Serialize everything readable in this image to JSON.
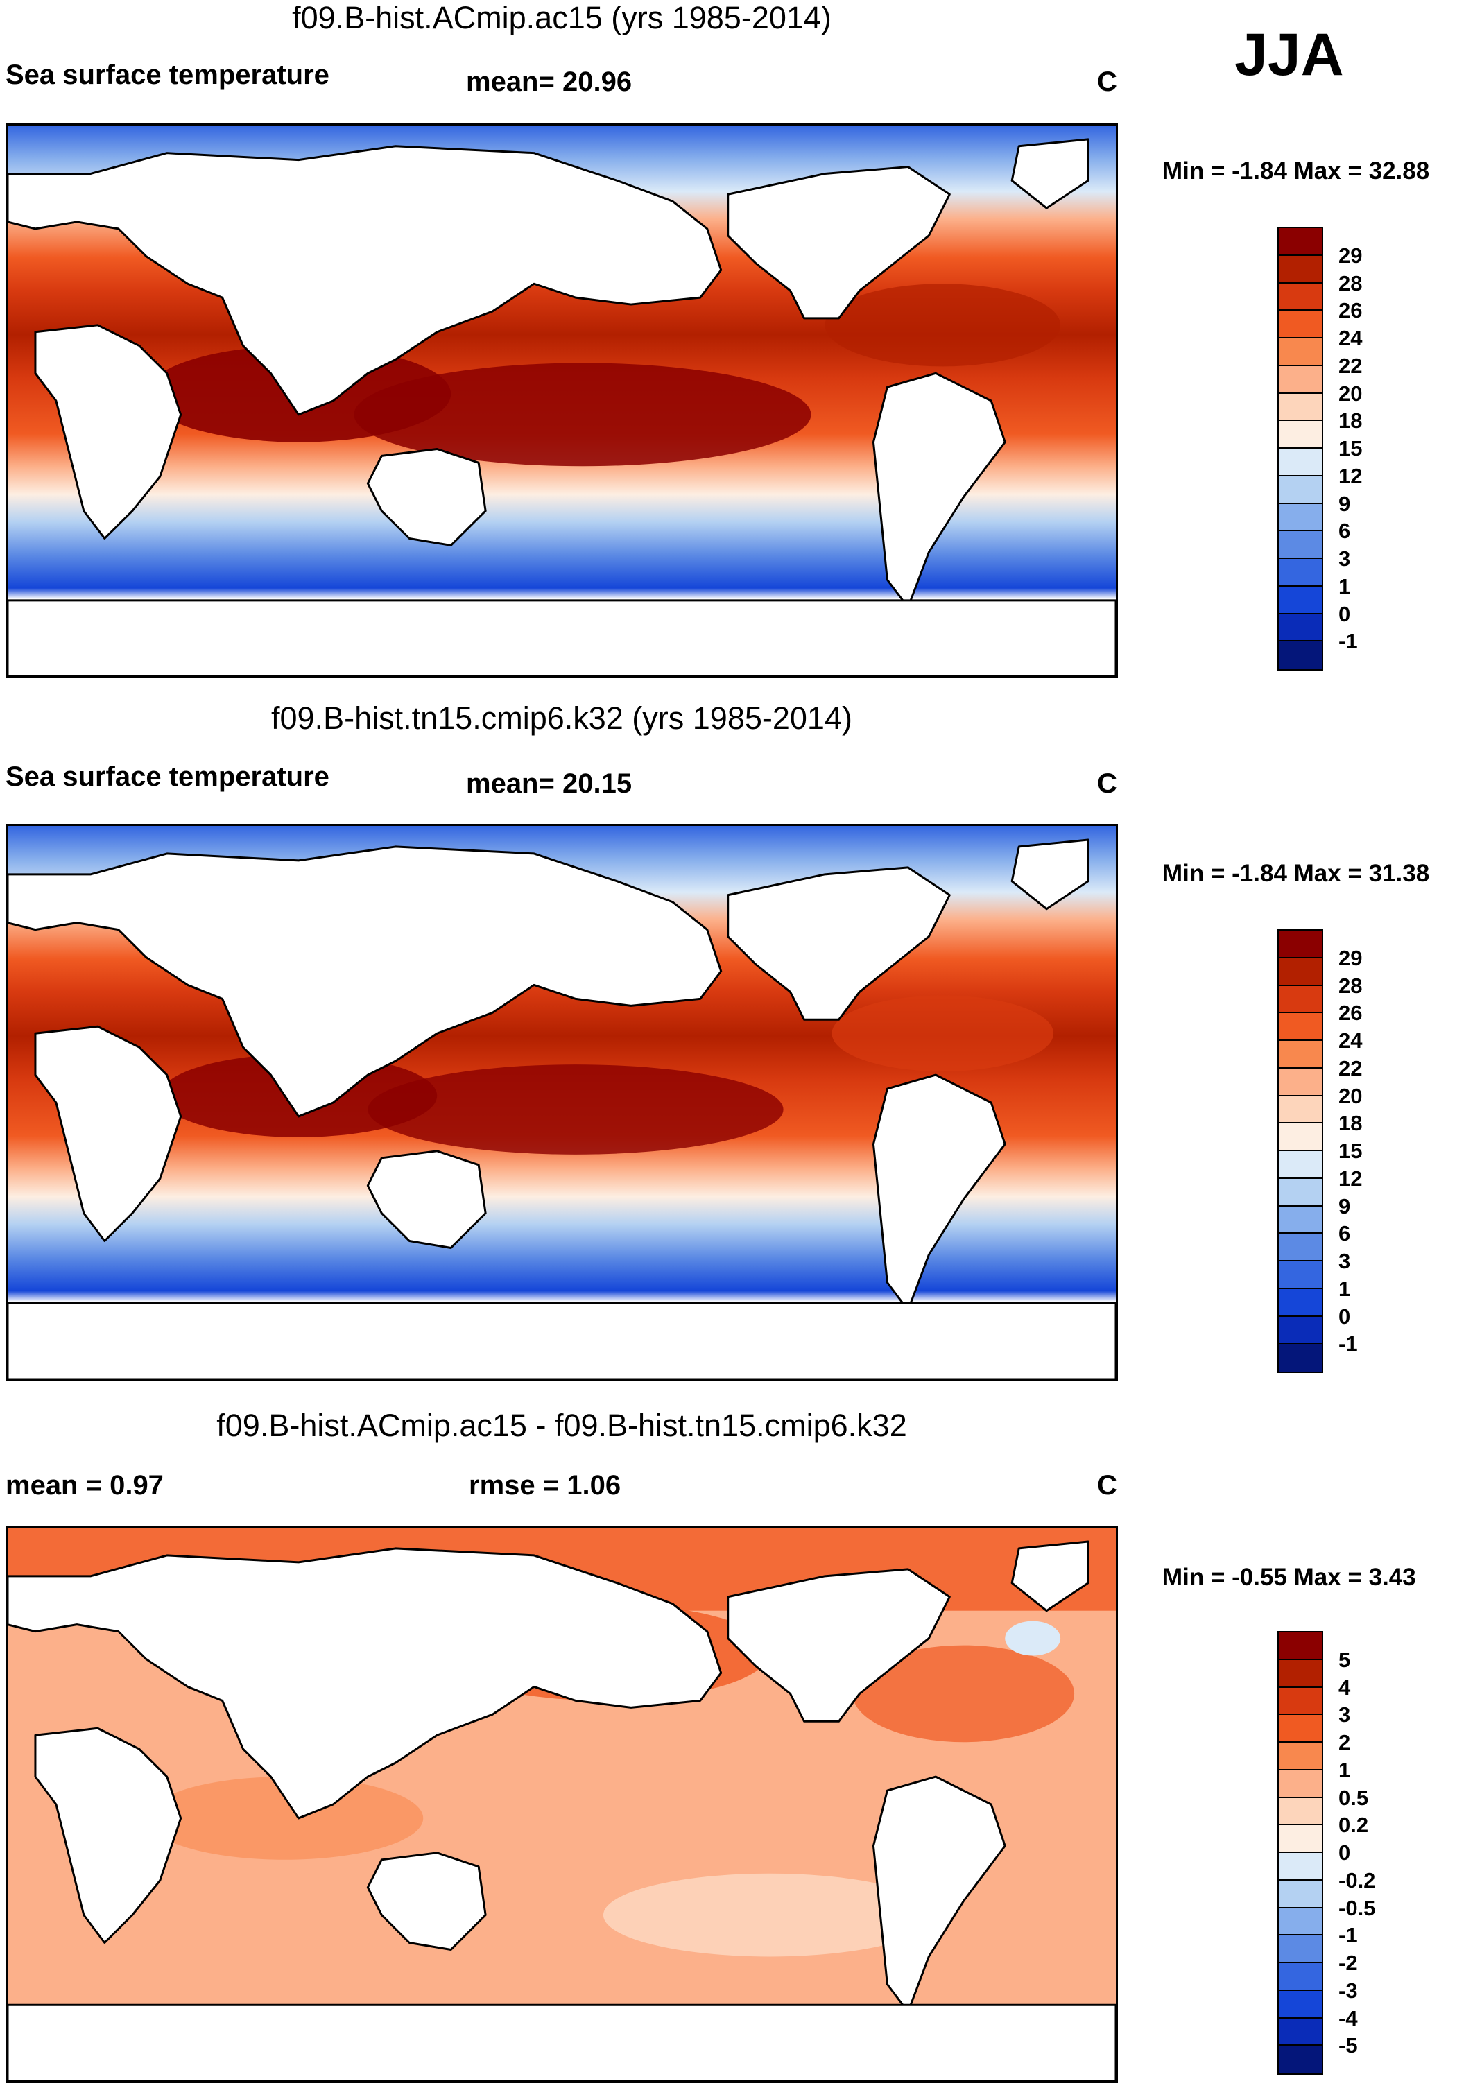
{
  "season": "JJA",
  "panels": [
    {
      "title": "f09.B-hist.ACmip.ac15 (yrs 1985-2014)",
      "left_label": "Sea surface temperature",
      "mid_label": "mean=  20.96",
      "units": "C",
      "minmax": "Min =  -1.84 Max =  32.88",
      "colorbar": {
        "colors": [
          "#8b0000",
          "#b22000",
          "#d83a10",
          "#f05a22",
          "#f8884e",
          "#fcb08a",
          "#fdd5bb",
          "#fdeee2",
          "#dbeaf8",
          "#b4d1f2",
          "#86aeec",
          "#5c8ae4",
          "#3466e0",
          "#1546d8",
          "#0a2cb8",
          "#04167a"
        ],
        "labels": [
          "29",
          "28",
          "26",
          "24",
          "22",
          "20",
          "18",
          "15",
          "12",
          "9",
          "6",
          "3",
          "1",
          "0",
          "-1"
        ]
      }
    },
    {
      "title": "f09.B-hist.tn15.cmip6.k32 (yrs 1985-2014)",
      "left_label": "Sea surface temperature",
      "mid_label": "mean=  20.15",
      "units": "C",
      "minmax": "Min =  -1.84 Max =  31.38",
      "colorbar": {
        "colors": [
          "#8b0000",
          "#b22000",
          "#d83a10",
          "#f05a22",
          "#f8884e",
          "#fcb08a",
          "#fdd5bb",
          "#fdeee2",
          "#dbeaf8",
          "#b4d1f2",
          "#86aeec",
          "#5c8ae4",
          "#3466e0",
          "#1546d8",
          "#0a2cb8",
          "#04167a"
        ],
        "labels": [
          "29",
          "28",
          "26",
          "24",
          "22",
          "20",
          "18",
          "15",
          "12",
          "9",
          "6",
          "3",
          "1",
          "0",
          "-1"
        ]
      }
    },
    {
      "title": "f09.B-hist.ACmip.ac15 - f09.B-hist.tn15.cmip6.k32",
      "left_label": "mean =   0.97",
      "mid_label": "rmse =   1.06",
      "units": "C",
      "minmax": "Min =  -0.55 Max =   3.43",
      "colorbar": {
        "colors": [
          "#8b0000",
          "#b22000",
          "#d83a10",
          "#f05a22",
          "#f8884e",
          "#fcb08a",
          "#fdd5bb",
          "#fdeee2",
          "#dbeaf8",
          "#b4d1f2",
          "#86aeec",
          "#5c8ae4",
          "#3466e0",
          "#1546d8",
          "#0a2cb8",
          "#04167a"
        ],
        "labels": [
          "5",
          "4",
          "3",
          "2",
          "1",
          "0.5",
          "0.2",
          "0",
          "-0.2",
          "-0.5",
          "-1",
          "-2",
          "-3",
          "-4",
          "-5"
        ]
      }
    }
  ]
}
